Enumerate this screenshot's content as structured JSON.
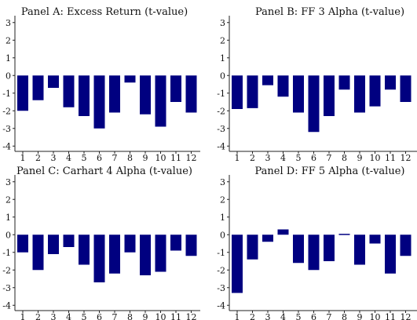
{
  "chart_data": [
    {
      "type": "bar",
      "title": "Panel A: Excess Return (t-value)",
      "categories": [
        "1",
        "2",
        "3",
        "4",
        "5",
        "6",
        "7",
        "8",
        "9",
        "10",
        "11",
        "12"
      ],
      "values": [
        -2.0,
        -1.4,
        -0.7,
        -1.8,
        -2.3,
        -3.0,
        -2.1,
        -0.4,
        -2.2,
        -2.9,
        -1.5,
        -2.1
      ],
      "yticks": [
        "3",
        "2",
        "1",
        "0",
        "-1",
        "-2",
        "-3",
        "-4"
      ],
      "ylim": [
        -4.3,
        3.3
      ],
      "grid": false,
      "bar_color": "#000080"
    },
    {
      "type": "bar",
      "title": "Panel B: FF 3 Alpha (t-value)",
      "categories": [
        "1",
        "2",
        "3",
        "4",
        "5",
        "6",
        "7",
        "8",
        "9",
        "10",
        "11",
        "12"
      ],
      "values": [
        -1.9,
        -1.85,
        -0.55,
        -1.2,
        -2.1,
        -3.2,
        -2.3,
        -0.8,
        -2.1,
        -1.75,
        -0.8,
        -1.5
      ],
      "yticks": [
        "3",
        "2",
        "1",
        "0",
        "-1",
        "-2",
        "-3",
        "-4"
      ],
      "ylim": [
        -4.3,
        3.3
      ],
      "grid": false,
      "bar_color": "#000080"
    },
    {
      "type": "bar",
      "title": "Panel C: Carhart 4 Alpha (t-value)",
      "categories": [
        "1",
        "2",
        "3",
        "4",
        "5",
        "6",
        "7",
        "8",
        "9",
        "10",
        "11",
        "12"
      ],
      "values": [
        -1.0,
        -2.0,
        -1.1,
        -0.7,
        -1.7,
        -2.7,
        -2.2,
        -1.0,
        -2.3,
        -2.1,
        -0.9,
        -1.2
      ],
      "yticks": [
        "3",
        "2",
        "1",
        "0",
        "-1",
        "-2",
        "-3",
        "-4"
      ],
      "ylim": [
        -4.3,
        3.3
      ],
      "grid": false,
      "bar_color": "#000080"
    },
    {
      "type": "bar",
      "title": "Panel D: FF 5 Alpha (t-value)",
      "categories": [
        "1",
        "2",
        "3",
        "4",
        "5",
        "6",
        "7",
        "8",
        "9",
        "10",
        "11",
        "12"
      ],
      "values": [
        -3.3,
        -1.4,
        -0.4,
        0.3,
        -1.6,
        -2.0,
        -1.5,
        0.05,
        -1.7,
        -0.5,
        -2.2,
        -1.2
      ],
      "yticks": [
        "3",
        "2",
        "1",
        "0",
        "-1",
        "-2",
        "-3",
        "-4"
      ],
      "ylim": [
        -4.3,
        3.3
      ],
      "grid": false,
      "bar_color": "#000080"
    }
  ]
}
